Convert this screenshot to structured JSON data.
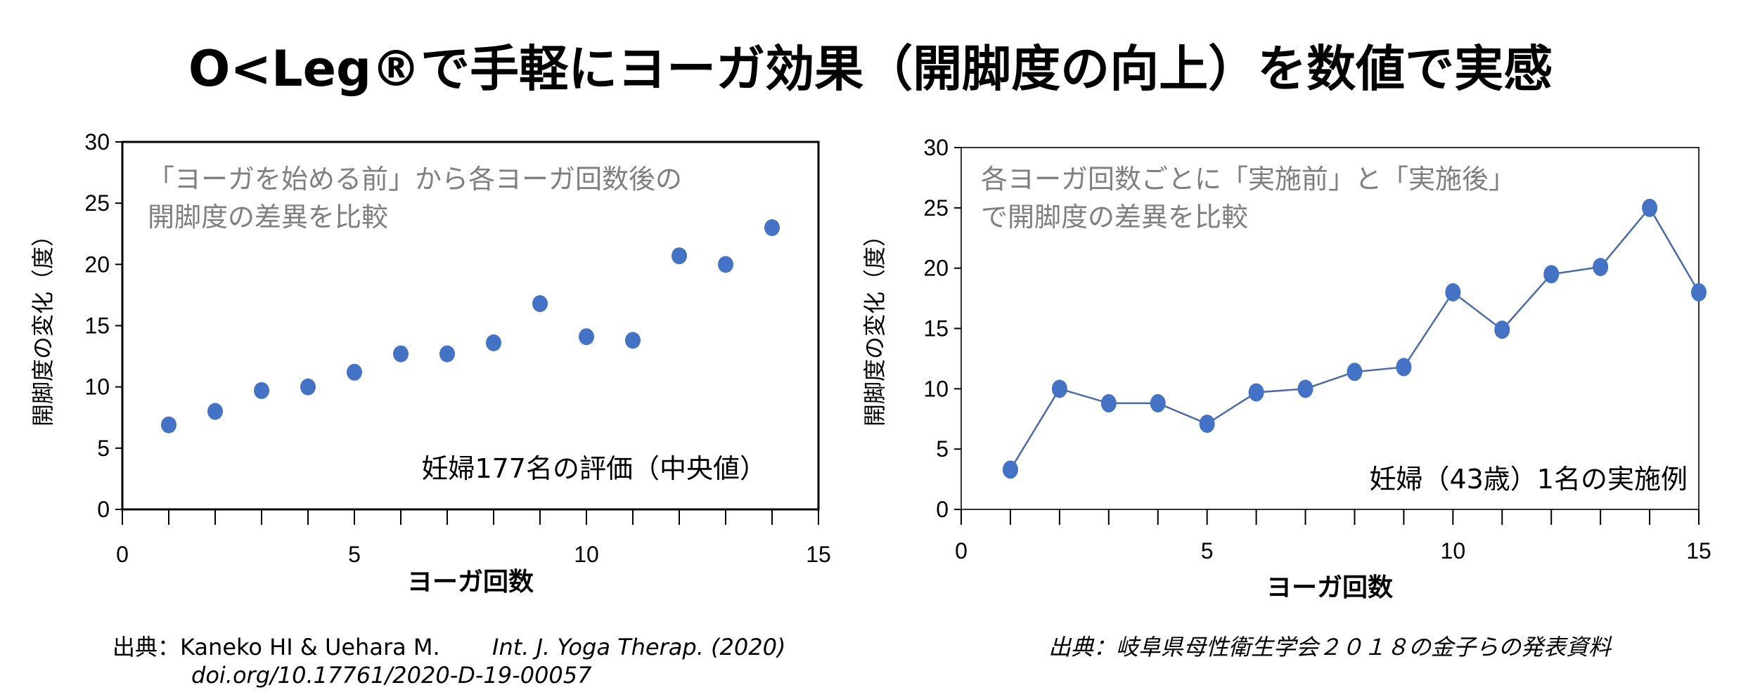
{
  "title": "O<Leg®で手軽にヨーガ効果（開脚度の向上）を数値で実感",
  "colors": {
    "marker": "#4472c4",
    "line": "#4a6aa8"
  },
  "chart_data": [
    {
      "type": "scatter",
      "xlabel": "ヨーガ回数",
      "ylabel": "開脚度の変化（度）",
      "xlim": [
        0,
        15
      ],
      "ylim": [
        0,
        30
      ],
      "xticks": [
        "0",
        "5",
        "10",
        "15"
      ],
      "yticks": [
        "0",
        "5",
        "10",
        "15",
        "20",
        "25",
        "30"
      ],
      "annotation_lines": [
        "「ヨーガを始める前」から各ヨーガ回数後の",
        "開脚度の差異を比較"
      ],
      "label": "妊婦177名の評価（中央値）",
      "x": [
        1,
        2,
        3,
        4,
        5,
        6,
        7,
        8,
        9,
        10,
        11,
        12,
        13,
        14
      ],
      "y": [
        6.9,
        8.0,
        9.7,
        10.0,
        11.2,
        12.7,
        12.7,
        13.6,
        16.8,
        14.1,
        13.8,
        20.7,
        20.0,
        23.0
      ],
      "source_lines": [
        "出典：Kaneko HI & Uehara M.",
        "Int. J. Yoga Therap. (2020)",
        "doi.org/10.17761/2020-D-19-00057"
      ]
    },
    {
      "type": "line",
      "xlabel": "ヨーガ回数",
      "ylabel": "開脚度の変化（度）",
      "xlim": [
        0,
        15
      ],
      "ylim": [
        0,
        30
      ],
      "xticks": [
        "0",
        "5",
        "10",
        "15"
      ],
      "yticks": [
        "0",
        "5",
        "10",
        "15",
        "20",
        "25",
        "30"
      ],
      "annotation_lines": [
        "各ヨーガ回数ごとに「実施前」と「実施後」",
        "で開脚度の差異を比較"
      ],
      "label": "妊婦（43歳）1名の実施例",
      "x": [
        1,
        2,
        3,
        4,
        5,
        6,
        7,
        8,
        9,
        10,
        11,
        12,
        13,
        14,
        15
      ],
      "y": [
        3.3,
        10.0,
        8.8,
        8.8,
        7.1,
        9.7,
        10.0,
        11.4,
        11.8,
        18.0,
        14.9,
        19.5,
        20.1,
        25.0,
        18.0
      ],
      "source_lines": [
        "出典：岐阜県母性衛生学会２０１８の金子らの発表資料"
      ]
    }
  ]
}
